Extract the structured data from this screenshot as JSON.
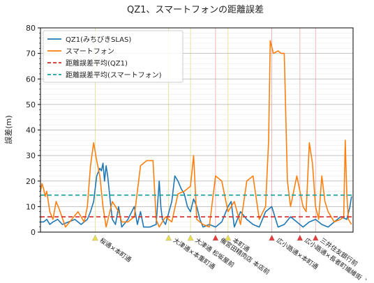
{
  "chart_data": {
    "type": "line",
    "title": "QZ1、スマートフォンの距離誤差",
    "xlabel": "",
    "ylabel": "誤差(m)",
    "ylim": [
      0,
      80
    ],
    "yticks": [
      0,
      10,
      20,
      30,
      40,
      50,
      60,
      70,
      80
    ],
    "grid": true,
    "legend_position": "top-left",
    "x_range": [
      0,
      1000
    ],
    "series": [
      {
        "name": "QZ1(みちびきSLAS)",
        "color": "#1f77b4",
        "points": [
          [
            0,
            4
          ],
          [
            10,
            4
          ],
          [
            20,
            5
          ],
          [
            30,
            3
          ],
          [
            40,
            4
          ],
          [
            55,
            5
          ],
          [
            70,
            3
          ],
          [
            90,
            4
          ],
          [
            110,
            5
          ],
          [
            130,
            3
          ],
          [
            150,
            5
          ],
          [
            160,
            8
          ],
          [
            170,
            12
          ],
          [
            180,
            22
          ],
          [
            190,
            25
          ],
          [
            195,
            24
          ],
          [
            200,
            27
          ],
          [
            205,
            20
          ],
          [
            210,
            26
          ],
          [
            215,
            22
          ],
          [
            220,
            16
          ],
          [
            225,
            10
          ],
          [
            230,
            5
          ],
          [
            240,
            3
          ],
          [
            250,
            10
          ],
          [
            260,
            2
          ],
          [
            280,
            5
          ],
          [
            300,
            10
          ],
          [
            310,
            3
          ],
          [
            320,
            8
          ],
          [
            330,
            2
          ],
          [
            350,
            2
          ],
          [
            370,
            3
          ],
          [
            380,
            20
          ],
          [
            385,
            10
          ],
          [
            390,
            5
          ],
          [
            400,
            3
          ],
          [
            420,
            12
          ],
          [
            430,
            22
          ],
          [
            440,
            20
          ],
          [
            450,
            17
          ],
          [
            460,
            15
          ],
          [
            470,
            10
          ],
          [
            480,
            8
          ],
          [
            490,
            13
          ],
          [
            500,
            10
          ],
          [
            510,
            5
          ],
          [
            520,
            2
          ],
          [
            540,
            3
          ],
          [
            560,
            2
          ],
          [
            580,
            4
          ],
          [
            600,
            10
          ],
          [
            610,
            12
          ],
          [
            620,
            2
          ],
          [
            640,
            8
          ],
          [
            660,
            5
          ],
          [
            680,
            3
          ],
          [
            700,
            2
          ],
          [
            720,
            8
          ],
          [
            740,
            10
          ],
          [
            760,
            2
          ],
          [
            780,
            3
          ],
          [
            800,
            6
          ],
          [
            820,
            4
          ],
          [
            840,
            2
          ],
          [
            860,
            4
          ],
          [
            880,
            5
          ],
          [
            900,
            3
          ],
          [
            920,
            2
          ],
          [
            940,
            4
          ],
          [
            960,
            6
          ],
          [
            980,
            5
          ],
          [
            990,
            10
          ],
          [
            995,
            14
          ]
        ]
      },
      {
        "name": "スマートフォン",
        "color": "#ff7f0e",
        "points": [
          [
            0,
            16
          ],
          [
            5,
            19
          ],
          [
            10,
            17
          ],
          [
            15,
            14
          ],
          [
            20,
            16
          ],
          [
            30,
            8
          ],
          [
            40,
            5
          ],
          [
            50,
            12
          ],
          [
            60,
            9
          ],
          [
            80,
            2
          ],
          [
            100,
            5
          ],
          [
            120,
            8
          ],
          [
            140,
            4
          ],
          [
            150,
            10
          ],
          [
            160,
            26
          ],
          [
            170,
            35
          ],
          [
            180,
            28
          ],
          [
            190,
            22
          ],
          [
            200,
            10
          ],
          [
            210,
            2
          ],
          [
            230,
            12
          ],
          [
            250,
            8
          ],
          [
            260,
            4
          ],
          [
            280,
            4
          ],
          [
            300,
            6
          ],
          [
            320,
            26
          ],
          [
            330,
            27
          ],
          [
            340,
            28
          ],
          [
            360,
            28
          ],
          [
            370,
            5
          ],
          [
            380,
            2
          ],
          [
            400,
            6
          ],
          [
            420,
            4
          ],
          [
            440,
            15
          ],
          [
            460,
            16
          ],
          [
            480,
            18
          ],
          [
            490,
            30
          ],
          [
            500,
            5
          ],
          [
            520,
            3
          ],
          [
            540,
            2
          ],
          [
            560,
            22
          ],
          [
            580,
            20
          ],
          [
            600,
            8
          ],
          [
            620,
            12
          ],
          [
            640,
            3
          ],
          [
            660,
            20
          ],
          [
            680,
            22
          ],
          [
            700,
            5
          ],
          [
            720,
            10
          ],
          [
            730,
            36
          ],
          [
            735,
            75
          ],
          [
            745,
            70
          ],
          [
            760,
            71
          ],
          [
            770,
            70
          ],
          [
            780,
            70
          ],
          [
            790,
            20
          ],
          [
            800,
            10
          ],
          [
            820,
            22
          ],
          [
            840,
            10
          ],
          [
            850,
            8
          ],
          [
            860,
            35
          ],
          [
            870,
            27
          ],
          [
            880,
            10
          ],
          [
            890,
            5
          ],
          [
            900,
            22
          ],
          [
            910,
            12
          ],
          [
            920,
            8
          ],
          [
            940,
            4
          ],
          [
            960,
            5
          ],
          [
            970,
            6
          ],
          [
            975,
            36
          ],
          [
            980,
            15
          ],
          [
            985,
            5
          ],
          [
            995,
            3
          ]
        ]
      },
      {
        "name": "距離誤差平均(QZ1)",
        "color": "#d62728",
        "dash": "dashed",
        "value": 6
      },
      {
        "name": "距離誤差平均(スマートフォン)",
        "color": "#17a2a0",
        "dash": "dashed",
        "value": 14.5
      }
    ],
    "annotations": [
      {
        "x": 175,
        "label": "桜通×本町通",
        "kind": "signal",
        "color": "#e8e04a"
      },
      {
        "x": 410,
        "label": "大津通×本重町通",
        "kind": "signal",
        "color": "#e8e04a"
      },
      {
        "x": 480,
        "label": "大津通 松坂屋前",
        "kind": "signal",
        "color": "#e8e04a"
      },
      {
        "x": 560,
        "label": "備宮田精肉店 本店前",
        "kind": "stop",
        "color": "#e83a3a"
      },
      {
        "x": 600,
        "label": "本町通",
        "kind": "signal",
        "color": "#e8e04a"
      },
      {
        "x": 740,
        "label": "広小路通×本町通",
        "kind": "stop",
        "color": "#e83a3a"
      },
      {
        "x": 830,
        "label": "広小路通×長者町繊維街 入口",
        "kind": "stop",
        "color": "#e83a3a"
      },
      {
        "x": 880,
        "label": "三井住友銀行前",
        "kind": "stop",
        "color": "#e83a3a"
      }
    ]
  }
}
